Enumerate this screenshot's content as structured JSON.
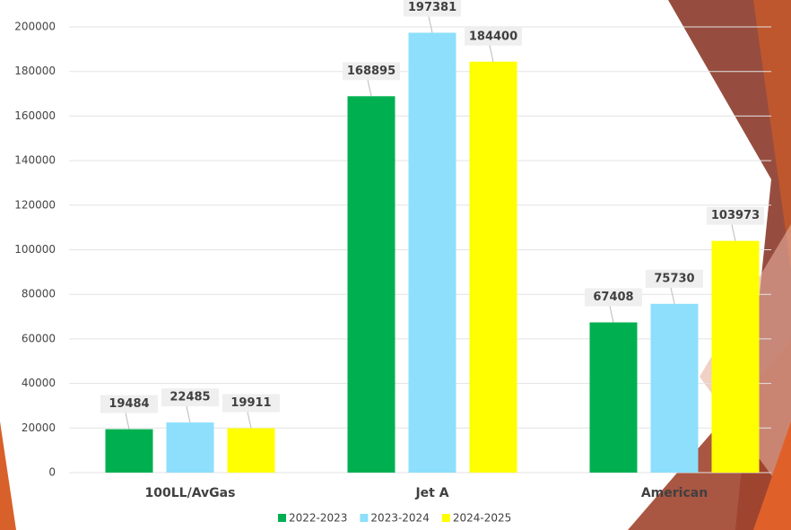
{
  "chart_data": {
    "type": "bar",
    "categories": [
      "100LL/AvGas",
      "Jet A",
      "American"
    ],
    "series": [
      {
        "name": "2022-2023",
        "color": "#00b050",
        "values": [
          19484,
          168895,
          67408
        ]
      },
      {
        "name": "2023-2024",
        "color": "#8ddffc",
        "values": [
          22485,
          197381,
          75730
        ]
      },
      {
        "name": "2024-2025",
        "color": "#ffff00",
        "values": [
          19911,
          184400,
          103973
        ]
      }
    ],
    "ylim": [
      0,
      200000
    ],
    "yticks": [
      0,
      20000,
      40000,
      60000,
      80000,
      100000,
      120000,
      140000,
      160000,
      180000,
      200000
    ],
    "grid": true,
    "legend": "bottom"
  }
}
